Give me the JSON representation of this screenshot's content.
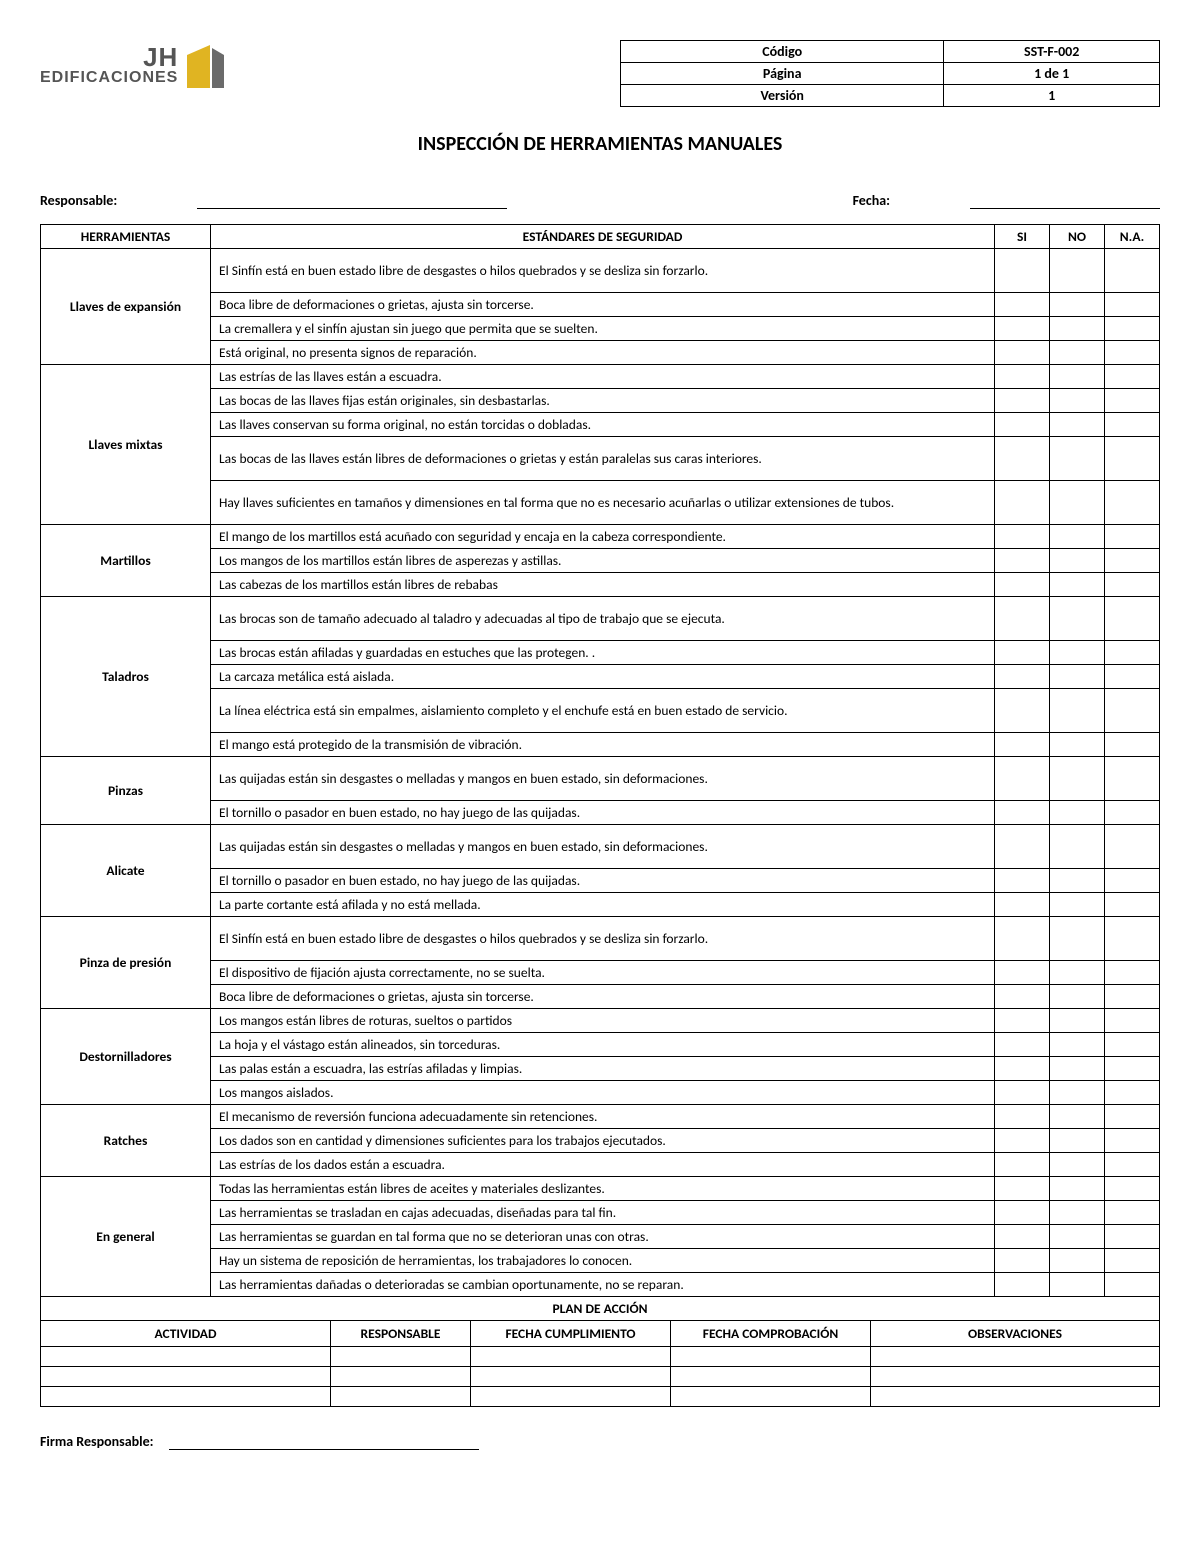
{
  "logo": {
    "jh": "JH",
    "edif": "EDIFICACIONES"
  },
  "info": {
    "codigo_label": "Código",
    "codigo_value": "SST-F-002",
    "pagina_label": "Página",
    "pagina_value": "1 de 1",
    "version_label": "Versión",
    "version_value": "1"
  },
  "title": "INSPECCIÓN DE HERRAMIENTAS MANUALES",
  "meta": {
    "responsable_label": "Responsable:",
    "fecha_label": "Fecha:"
  },
  "headers": {
    "herramientas": "HERRAMIENTAS",
    "estandares": "ESTÁNDARES DE SEGURIDAD",
    "si": "SI",
    "no": "NO",
    "na": "N.A."
  },
  "groups": [
    {
      "tool": "Llaves de expansión",
      "items": [
        {
          "text": "El Sinfín está en buen estado libre de desgastes o hilos quebrados y se desliza sin forzarlo.",
          "tall": true
        },
        {
          "text": "Boca libre de deformaciones o grietas, ajusta sin torcerse."
        },
        {
          "text": "La cremallera y el sinfín ajustan sin juego que permita que se suelten."
        },
        {
          "text": "Está original, no presenta signos de reparación."
        }
      ]
    },
    {
      "tool": "Llaves mixtas",
      "items": [
        {
          "text": "Las estrías de las llaves están a escuadra."
        },
        {
          "text": "Las bocas de las llaves fijas están originales, sin desbastarlas."
        },
        {
          "text": "Las llaves conservan su forma original, no están torcidas o dobladas."
        },
        {
          "text": "Las bocas de las llaves están libres de deformaciones  o grietas y están paralelas sus caras interiores.",
          "tall": true
        },
        {
          "text": "Hay llaves suficientes en tamaños y dimensiones en tal forma que no es necesario acuñarlas o utilizar extensiones de tubos.",
          "tall": true
        }
      ]
    },
    {
      "tool": "Martillos",
      "items": [
        {
          "text": "El mango de los martillos está acuñado con seguridad y encaja en la cabeza correspondiente."
        },
        {
          "text": "Los mangos de los martillos están libres de asperezas y astillas."
        },
        {
          "text": "Las cabezas de los martillos están libres de rebabas"
        }
      ]
    },
    {
      "tool": "Taladros",
      "items": [
        {
          "text": "Las brocas son de tamaño adecuado al taladro y adecuadas al tipo de trabajo que se ejecuta.",
          "tall": true
        },
        {
          "text": "Las brocas están afiladas y guardadas en estuches que las protegen. ."
        },
        {
          "text": "La carcaza metálica está aislada."
        },
        {
          "text": "La línea eléctrica está sin empalmes, aislamiento completo y el enchufe está en buen estado de servicio.",
          "tall": true
        },
        {
          "text": "El mango está protegido de la transmisión de vibración."
        }
      ]
    },
    {
      "tool": "Pinzas",
      "items": [
        {
          "text": "Las quijadas están sin desgastes o melladas y mangos en buen estado, sin deformaciones.",
          "tall": true
        },
        {
          "text": "El tornillo o pasador en buen estado, no hay juego de las quijadas."
        }
      ]
    },
    {
      "tool": "Alicate",
      "items": [
        {
          "text": "Las quijadas están sin desgastes o melladas y mangos en buen estado, sin deformaciones.",
          "tall": true
        },
        {
          "text": "El tornillo o pasador en buen estado, no hay juego de las quijadas."
        },
        {
          "text": "La parte cortante está afilada y no está mellada."
        }
      ]
    },
    {
      "tool": "Pinza de presión",
      "items": [
        {
          "text": "El Sinfín está en buen estado libre de desgastes o hilos quebrados y se desliza sin forzarlo.",
          "tall": true
        },
        {
          "text": "El dispositivo de fijación ajusta correctamente, no se suelta."
        },
        {
          "text": "Boca libre de deformaciones o grietas, ajusta sin torcerse."
        }
      ]
    },
    {
      "tool": "Destornilladores",
      "items": [
        {
          "text": "Los mangos están libres de roturas, sueltos o partidos"
        },
        {
          "text": "La hoja y el vástago están alineados, sin torceduras."
        },
        {
          "text": "Las palas están a escuadra, las estrías afiladas y limpias."
        },
        {
          "text": "Los mangos aislados."
        }
      ]
    },
    {
      "tool": "Ratches",
      "items": [
        {
          "text": "El mecanismo de reversión funciona adecuadamente sin retenciones."
        },
        {
          "text": "Los dados son en cantidad y dimensiones suficientes para los trabajos ejecutados."
        },
        {
          "text": "Las estrías de los dados están a escuadra."
        }
      ]
    },
    {
      "tool": "En general",
      "items": [
        {
          "text": "Todas las herramientas están libres de aceites y materiales deslizantes."
        },
        {
          "text": "Las herramientas se trasladan en cajas adecuadas, diseñadas para tal fin."
        },
        {
          "text": "Las herramientas se guardan en tal forma que no se deterioran unas con otras."
        },
        {
          "text": "Hay un sistema de reposición de herramientas, los trabajadores lo conocen."
        },
        {
          "text": "Las herramientas dañadas o deterioradas se cambian oportunamente, no se reparan."
        }
      ]
    }
  ],
  "plan": {
    "title": "PLAN DE ACCIÓN",
    "headers": {
      "actividad": "ACTIVIDAD",
      "responsable": "RESPONSABLE",
      "fecha_cumplimiento": "FECHA CUMPLIMIENTO",
      "fecha_comprobacion": "FECHA COMPROBACIÓN",
      "observaciones": "OBSERVACIONES"
    },
    "empty_rows": 3
  },
  "footer": {
    "firma_label": "Firma Responsable:"
  },
  "colors": {
    "logo_yellow": "#e0b422",
    "logo_dark": "#6b6b6b",
    "text_gray": "#555555"
  }
}
